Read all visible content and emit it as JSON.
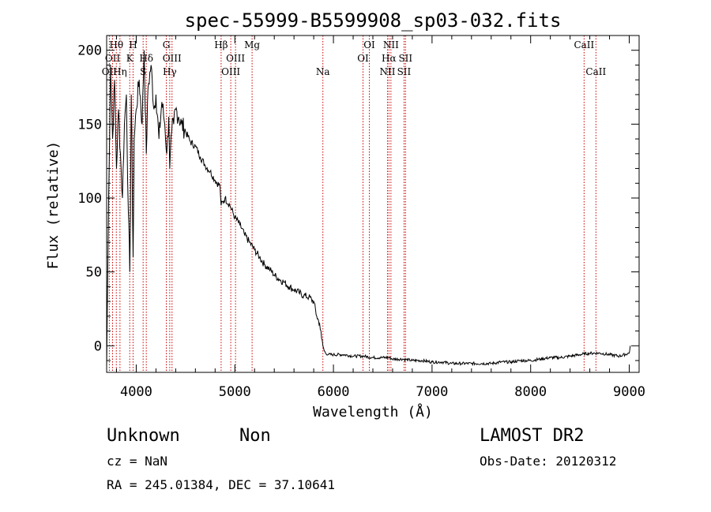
{
  "chart_data": {
    "type": "line",
    "title": "spec-55999-B5599908_sp03-032.fits",
    "xlabel": "Wavelength (Å)",
    "ylabel": "Flux (relative)",
    "xlim": [
      3700,
      9100
    ],
    "ylim": [
      -18,
      210
    ],
    "xticks": [
      4000,
      5000,
      6000,
      7000,
      8000,
      9000
    ],
    "yticks": [
      0,
      50,
      100,
      150,
      200
    ],
    "grid": false,
    "series": [
      {
        "x": [
          3700,
          3720,
          3740,
          3760,
          3780,
          3800,
          3820,
          3840,
          3860,
          3880,
          3900,
          3920,
          3935,
          3950,
          3968,
          3980,
          4000,
          4030,
          4060,
          4080,
          4102,
          4120,
          4150,
          4180,
          4200,
          4230,
          4260,
          4290,
          4310,
          4330,
          4340,
          4360,
          4380,
          4400,
          4430,
          4460,
          4500,
          4550,
          4600,
          4650,
          4700,
          4750,
          4800,
          4850,
          4861,
          4900,
          4950,
          5000,
          5050,
          5100,
          5150,
          5200,
          5250,
          5300,
          5350,
          5400,
          5450,
          5500,
          5550,
          5600,
          5650,
          5700,
          5750,
          5800,
          5830,
          5860,
          5880,
          5893,
          5905,
          5920,
          5950,
          6000,
          6100,
          6200,
          6300,
          6400,
          6500,
          6563,
          6600,
          6700,
          6800,
          6900,
          7000,
          7100,
          7200,
          7300,
          7400,
          7500,
          7600,
          7700,
          7800,
          7900,
          8000,
          8100,
          8200,
          8300,
          8400,
          8500,
          8600,
          8700,
          8800,
          8900,
          9000,
          9010
        ],
        "y": [
          -15,
          100,
          190,
          140,
          180,
          120,
          160,
          130,
          100,
          150,
          170,
          90,
          50,
          170,
          60,
          140,
          160,
          180,
          150,
          200,
          130,
          175,
          190,
          160,
          170,
          140,
          165,
          150,
          130,
          155,
          120,
          145,
          150,
          160,
          155,
          150,
          145,
          138,
          135,
          128,
          122,
          118,
          112,
          108,
          95,
          100,
          95,
          87,
          82,
          75,
          70,
          65,
          60,
          55,
          52,
          48,
          45,
          43,
          40,
          38,
          36,
          34,
          33,
          30,
          20,
          15,
          5,
          0,
          -3,
          -5,
          -6,
          -6,
          -6,
          -7,
          -7,
          -8,
          -8,
          -8,
          -9,
          -9,
          -10,
          -10,
          -11,
          -11,
          -12,
          -12,
          -12,
          -12,
          -12,
          -11,
          -11,
          -10,
          -10,
          -9,
          -8,
          -8,
          -7,
          -6,
          -5,
          -5,
          -6,
          -7,
          -5,
          0
        ]
      }
    ],
    "spectral_lines": [
      {
        "label": "OII",
        "x": 3727,
        "row": 2
      },
      {
        "label": "Hθ",
        "x": 3798,
        "row": 0
      },
      {
        "label": "OII",
        "x": 3760,
        "row": 1
      },
      {
        "label": "Hη",
        "x": 3835,
        "row": 2
      },
      {
        "label": "H",
        "x": 3968,
        "row": 0
      },
      {
        "label": "K",
        "x": 3934,
        "row": 1
      },
      {
        "label": "S",
        "x": 4070,
        "row": 2
      },
      {
        "label": "Hδ",
        "x": 4102,
        "row": 1
      },
      {
        "label": "G",
        "x": 4305,
        "row": 0
      },
      {
        "label": "OIII",
        "x": 4363,
        "row": 1
      },
      {
        "label": "Hγ",
        "x": 4340,
        "row": 2
      },
      {
        "label": "Hβ",
        "x": 4861,
        "row": 0
      },
      {
        "label": "OIII",
        "x": 4959,
        "row": 2
      },
      {
        "label": "OIII",
        "x": 5007,
        "row": 1
      },
      {
        "label": "Mg",
        "x": 5175,
        "row": 0
      },
      {
        "label": "Na",
        "x": 5893,
        "row": 2
      },
      {
        "label": "OI",
        "x": 6300,
        "row": 1
      },
      {
        "label": "OI",
        "x": 6364,
        "row": 0
      },
      {
        "label": "NII",
        "x": 6548,
        "row": 2
      },
      {
        "label": "Hα",
        "x": 6563,
        "row": 1
      },
      {
        "label": "NII",
        "x": 6583,
        "row": 0
      },
      {
        "label": "SII",
        "x": 6716,
        "row": 2
      },
      {
        "label": "SII",
        "x": 6731,
        "row": 1
      },
      {
        "label": "CaII",
        "x": 8542,
        "row": 0
      },
      {
        "label": "CaII",
        "x": 8662,
        "row": 2
      }
    ]
  },
  "footer": {
    "object_type": "Unknown",
    "object_subtype": "Non",
    "survey": "LAMOST DR2",
    "cz": "cz = NaN",
    "obs_date": "Obs-Date: 20120312",
    "coords": "RA = 245.01384, DEC =  37.10641"
  },
  "colors": {
    "spectrum": "#000000",
    "line_markers": "#cc0000",
    "axes": "#000000"
  }
}
